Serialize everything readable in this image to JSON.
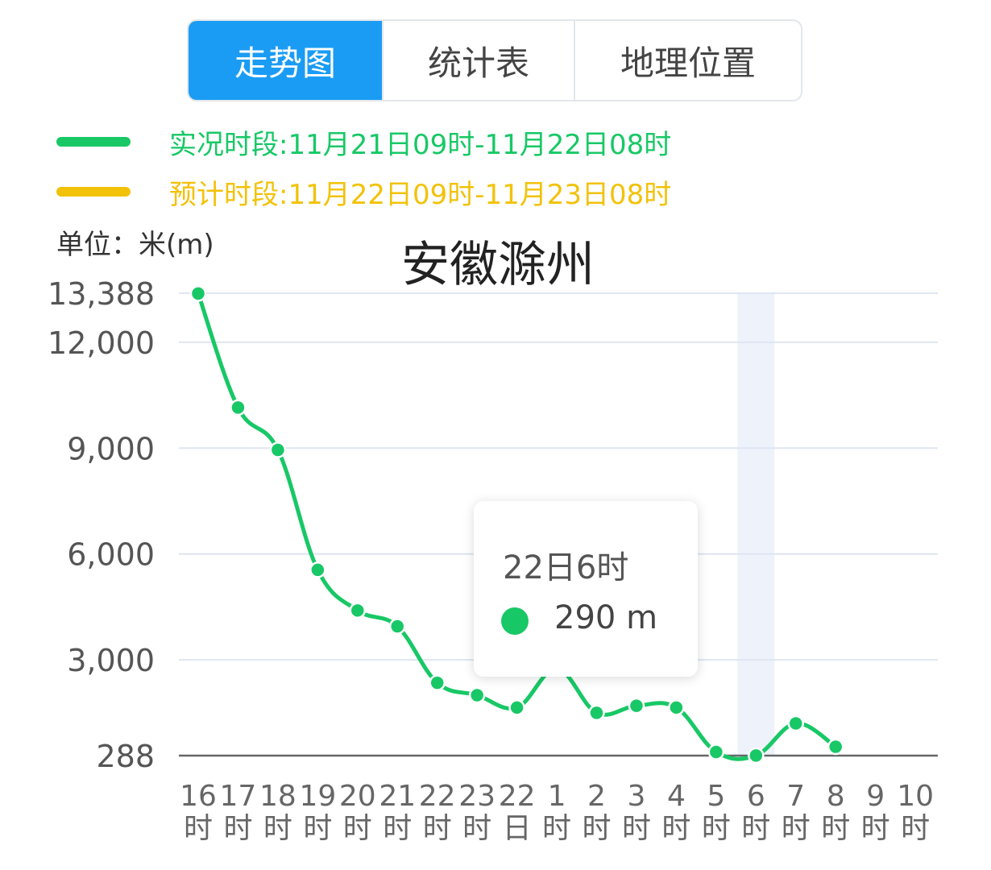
{
  "tabs": [
    {
      "label": "走势图",
      "active": true
    },
    {
      "label": "统计表",
      "active": false
    },
    {
      "label": "地理位置",
      "active": false
    }
  ],
  "legend": [
    {
      "text": "实况时段:11月21日09时-11月22日08时",
      "color": "#18c866"
    },
    {
      "text": "预计时段:11月22日09时-11月23日08时",
      "color": "#f2c20a"
    }
  ],
  "unit_label": "单位：米(m)",
  "tooltip": {
    "title": "22日6时",
    "value": "290 m"
  },
  "chart_data": {
    "type": "line",
    "title": "安徽滁州",
    "ylabel": "单位：米(m)",
    "ylim": [
      288,
      13388
    ],
    "yticks": [
      "13,388",
      "12,000",
      "9,000",
      "6,000",
      "3,000",
      "288"
    ],
    "ytick_values": [
      13388,
      12000,
      9000,
      6000,
      3000,
      288
    ],
    "x": [
      [
        "16",
        "时"
      ],
      [
        "17",
        "时"
      ],
      [
        "18",
        "时"
      ],
      [
        "19",
        "时"
      ],
      [
        "20",
        "时"
      ],
      [
        "21",
        "时"
      ],
      [
        "22",
        "时"
      ],
      [
        "23",
        "时"
      ],
      [
        "22",
        "日"
      ],
      [
        "1",
        "时"
      ],
      [
        "2",
        "时"
      ],
      [
        "3",
        "时"
      ],
      [
        "4",
        "时"
      ],
      [
        "5",
        "时"
      ],
      [
        "6",
        "时"
      ],
      [
        "7",
        "时"
      ],
      [
        "8",
        "时"
      ],
      [
        "9",
        "时"
      ],
      [
        "10",
        "时"
      ]
    ],
    "series": [
      {
        "name": "实况时段:11月21日09时-11月22日08时",
        "color": "#18c866",
        "values": [
          13380,
          10150,
          8950,
          5550,
          4400,
          3950,
          2350,
          2000,
          1650,
          2750,
          1500,
          1700,
          1650,
          390,
          290,
          1200,
          540,
          null,
          null
        ]
      }
    ],
    "highlight_index": 14,
    "grid": true
  }
}
